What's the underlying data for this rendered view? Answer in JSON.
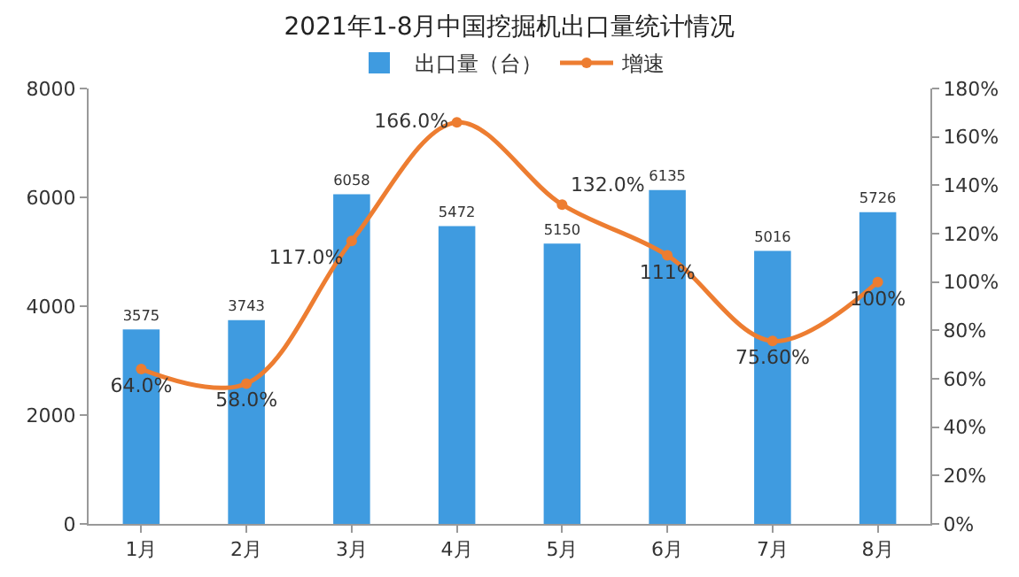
{
  "chart_data": {
    "type": "bar",
    "title": "2021年1-8月中国挖掘机出口量统计情况",
    "categories": [
      "1月",
      "2月",
      "3月",
      "4月",
      "5月",
      "6月",
      "7月",
      "8月"
    ],
    "series": [
      {
        "name": "出口量（台）",
        "color": "#3f9be0",
        "values": [
          3575,
          3743,
          6058,
          5472,
          5150,
          6135,
          5016,
          5726
        ],
        "value_labels": [
          "3575",
          "3743",
          "6058",
          "5472",
          "5150",
          "6135",
          "5016",
          "5726"
        ]
      },
      {
        "name": "增速",
        "type": "line",
        "axis": "y2",
        "color": "#ed7d31",
        "marker": "circle",
        "values": [
          64.0,
          58.0,
          117.0,
          166.0,
          132.0,
          111,
          75.6,
          100
        ],
        "value_labels": [
          "64.0%",
          "58.0%",
          "117.0%",
          "166.0%",
          "132.0%",
          "111%",
          "75.60%",
          "100%"
        ]
      }
    ],
    "ylim": [
      0,
      8000
    ],
    "yticks": [
      0,
      2000,
      4000,
      6000,
      8000
    ],
    "y2lim": [
      0,
      180
    ],
    "y2ticks": [
      {
        "value": 0,
        "label": "0%"
      },
      {
        "value": 20,
        "label": "20%"
      },
      {
        "value": 40,
        "label": "40%"
      },
      {
        "value": 60,
        "label": "60%"
      },
      {
        "value": 80,
        "label": "80%"
      },
      {
        "value": 100,
        "label": "100%"
      },
      {
        "value": 120,
        "label": "120%"
      },
      {
        "value": 140,
        "label": "140%"
      },
      {
        "value": 160,
        "label": "160%"
      },
      {
        "value": 180,
        "label": "180%"
      }
    ],
    "grid": false,
    "legend": "top"
  }
}
